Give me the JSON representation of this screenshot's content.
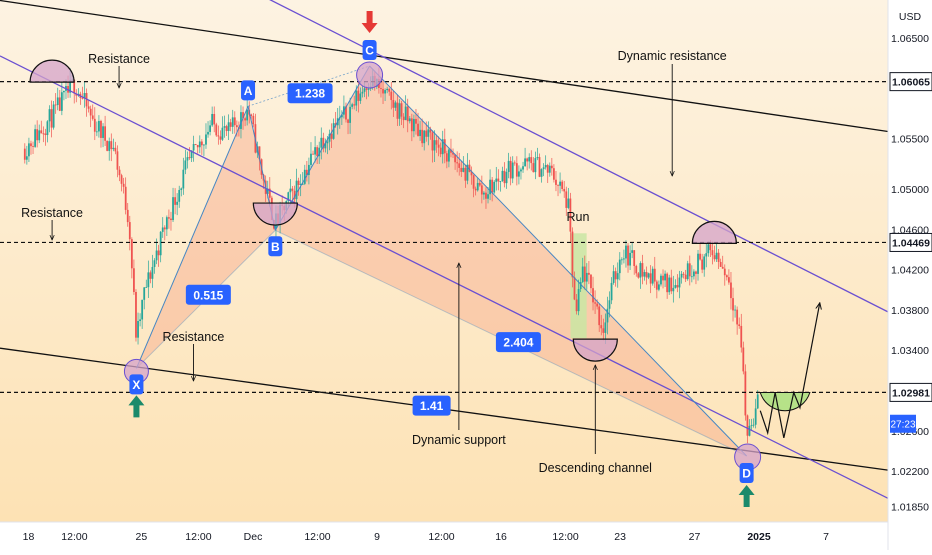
{
  "chart_data": {
    "type": "candlestick",
    "instrument_note": "EURUSD-style price chart with harmonic XABCD pattern",
    "currency": "USD",
    "countdown": "27:23",
    "y_ticks": [
      "1.06500",
      "1.05500",
      "1.05000",
      "1.04600",
      "1.04200",
      "1.03800",
      "1.03400",
      "1.02600",
      "1.02200",
      "1.01850"
    ],
    "y_tick_values": [
      1.065,
      1.055,
      1.05,
      1.046,
      1.042,
      1.038,
      1.034,
      1.026,
      1.022,
      1.0185
    ],
    "price_levels": [
      {
        "label": "1.06065",
        "value": 1.06065
      },
      {
        "label": "1.04469",
        "value": 1.04469
      },
      {
        "label": "1.02981",
        "value": 1.02981
      }
    ],
    "x_ticks": [
      "18",
      "12:00",
      "25",
      "12:00",
      "Dec",
      "12:00",
      "9",
      "12:00",
      "16",
      "12:00",
      "23",
      "27",
      "2025",
      "7"
    ],
    "x_tick_values": [
      0.15,
      2.0,
      4.7,
      7.0,
      9.2,
      11.8,
      14.2,
      16.8,
      19.2,
      21.8,
      24.0,
      27.0,
      29.6,
      32.3
    ],
    "xlim": [
      -1.0,
      34.8
    ],
    "ylim": [
      1.01695,
      1.06875
    ],
    "pattern_points": [
      {
        "label": "X",
        "x": 4.5,
        "y": 1.0322
      },
      {
        "label": "A",
        "x": 9.0,
        "y": 1.0582
      },
      {
        "label": "B",
        "x": 10.1,
        "y": 1.0459
      },
      {
        "label": "C",
        "x": 13.9,
        "y": 1.0622
      },
      {
        "label": "D",
        "x": 29.1,
        "y": 1.0235
      }
    ],
    "ratios": [
      {
        "label": "1.238",
        "x": 11.5,
        "y": 1.0595
      },
      {
        "label": "0.515",
        "x": 7.4,
        "y": 1.0395
      },
      {
        "label": "2.404",
        "x": 19.9,
        "y": 1.0348
      },
      {
        "label": "1.41",
        "x": 16.4,
        "y": 1.0285
      }
    ],
    "annotations": [
      "Resistance",
      "Resistance",
      "Resistance",
      "Dynamic resistance",
      "Dynamic support",
      "Descending channel",
      "Run"
    ]
  }
}
